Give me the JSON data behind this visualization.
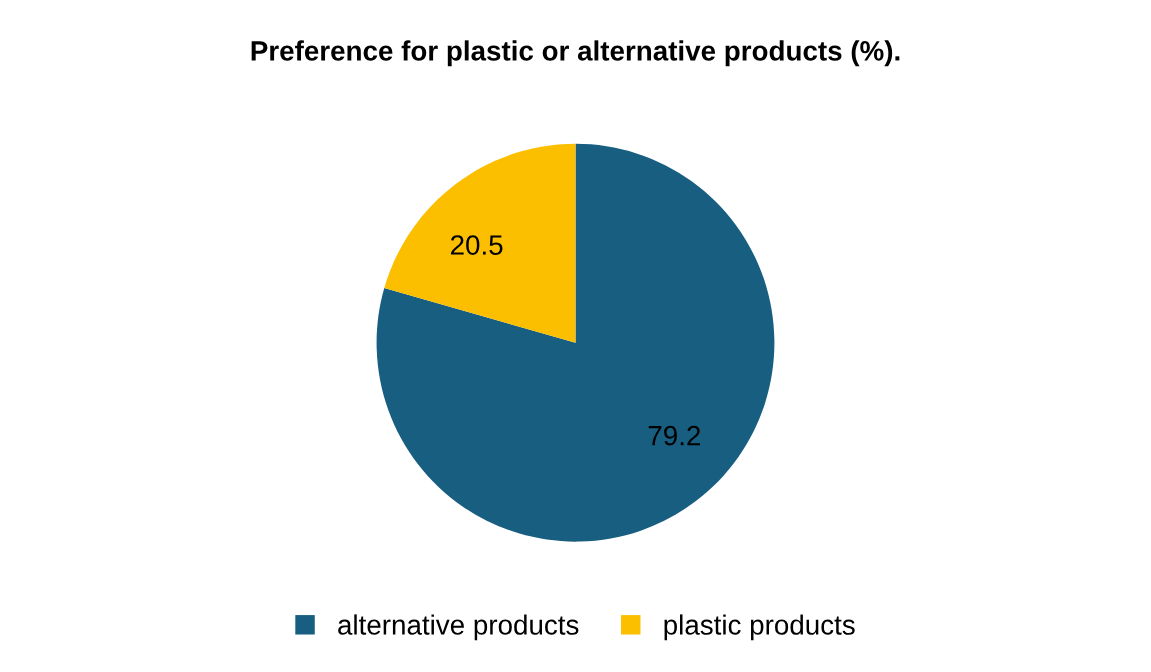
{
  "chart_data": {
    "type": "pie",
    "title": "Preference for plastic or alternative products (%).",
    "categories": [
      "alternative products",
      "plastic products"
    ],
    "values": [
      79.2,
      20.5
    ],
    "colors": [
      "#175e80",
      "#fbbf00"
    ],
    "data_labels": true,
    "legend": "bottom"
  }
}
